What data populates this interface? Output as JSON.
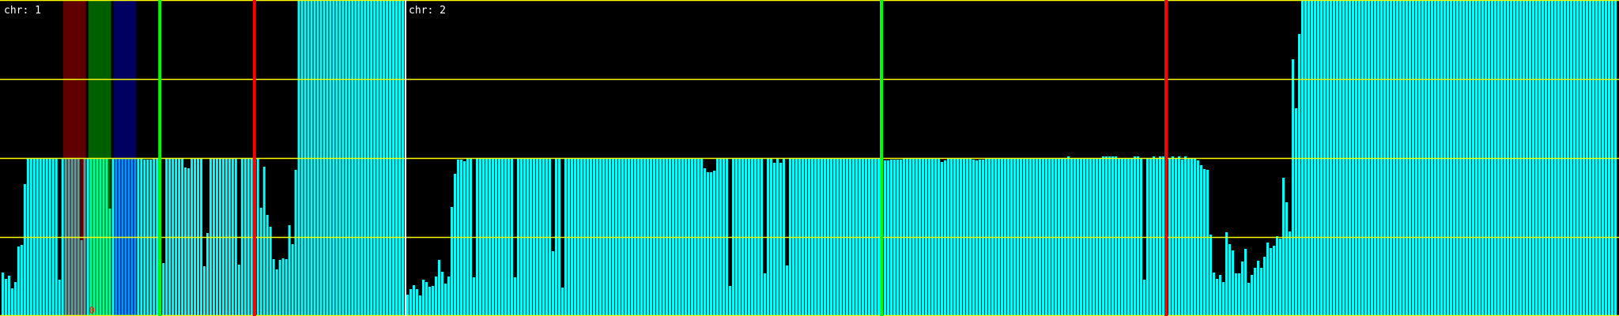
{
  "chart_data": {
    "type": "bar",
    "ylim": [
      0,
      4
    ],
    "gridlines": [
      0,
      1,
      2,
      3,
      4
    ],
    "grid": true,
    "colors": {
      "background": "#000000",
      "bar": "#00ffff",
      "grid": "#ffff00",
      "separator": "#ffffff",
      "green-line": "#00ff00",
      "red-line": "#ff0000",
      "band_bg": {
        "red": "#600000",
        "green": "#005f00",
        "blue": "#000060"
      },
      "band_bar": {
        "red": "#609c9c",
        "green": "#00ff98",
        "blue": "#0098ff"
      },
      "annotation": "#ff2020",
      "label": "#ffffff"
    },
    "panels": [
      {
        "label": "chr: 1",
        "values": [
          0.55,
          0.47,
          0.51,
          0.35,
          0.43,
          0.88,
          0.9,
          1.67,
          2,
          2,
          2,
          2,
          2,
          2,
          2,
          2,
          2,
          2,
          0.46,
          2,
          2,
          2,
          2,
          2,
          2,
          0.96,
          2,
          2,
          2,
          2,
          2,
          2,
          2,
          2,
          1.36,
          2,
          2,
          2,
          2,
          2,
          2,
          2,
          2,
          2,
          2,
          1.98,
          1.98,
          1.98,
          2,
          2,
          2,
          0.67,
          2,
          2,
          2,
          2,
          2,
          2,
          1.88,
          1.87,
          2,
          2,
          2,
          2,
          0.63,
          1.05,
          2,
          2,
          2,
          2,
          2,
          2,
          2,
          2,
          2,
          0.65,
          2,
          2,
          2,
          2,
          2,
          2,
          1.37,
          1.89,
          1.28,
          1.13,
          0.72,
          0.59,
          0.71,
          0.73,
          0.72,
          1.15,
          0.91,
          1.85,
          4,
          4,
          4,
          4,
          4,
          4,
          4,
          4,
          4,
          4,
          4,
          4,
          4,
          4,
          4,
          4,
          4,
          4,
          4,
          4,
          4,
          4,
          4,
          4,
          4,
          4,
          4,
          4,
          4,
          4,
          4,
          4,
          4,
          4
        ],
        "markers": [
          {
            "kind": "green-line",
            "index": 50
          },
          {
            "kind": "red-line",
            "index": 80
          }
        ],
        "bands": [
          {
            "color": "red",
            "from": 20,
            "to": 26
          },
          {
            "color": "green",
            "from": 28,
            "to": 34
          },
          {
            "color": "blue",
            "from": 36,
            "to": 42
          }
        ],
        "annotations": [
          {
            "text": "0",
            "index": 28
          }
        ]
      },
      {
        "label": "chr: 2",
        "values": [
          0.27,
          0.34,
          0.39,
          0.34,
          0.26,
          0.46,
          0.43,
          0.37,
          0.38,
          0.5,
          0.71,
          0.56,
          0.41,
          0.5,
          1.38,
          1.8,
          1.98,
          1.98,
          1.96,
          2,
          2,
          0.49,
          2,
          2,
          2,
          2,
          2,
          2,
          2,
          2,
          2,
          2,
          2,
          2,
          0.49,
          2,
          2,
          2,
          2,
          2,
          2,
          2,
          2,
          2,
          2,
          2,
          0.82,
          2,
          2,
          0.36,
          2,
          2,
          2,
          2,
          2,
          2,
          2,
          2,
          2,
          2,
          2,
          2,
          2,
          2,
          2,
          2,
          2,
          2,
          2,
          2,
          2,
          2,
          2,
          2,
          2,
          2,
          2,
          2,
          2,
          2,
          2,
          2,
          2,
          2,
          2,
          2,
          2,
          2,
          2,
          2,
          2,
          2,
          2,
          2,
          1.87,
          1.82,
          1.82,
          1.84,
          2,
          2,
          2,
          2,
          0.38,
          2,
          2,
          2,
          2,
          2,
          2,
          2,
          2,
          2,
          2,
          0.54,
          2,
          2,
          1.94,
          2,
          1.94,
          2,
          0.64,
          2,
          2,
          2,
          2,
          2,
          2,
          2,
          2,
          2,
          2,
          2,
          2,
          2,
          2,
          2,
          2,
          2,
          2,
          2,
          2,
          2,
          2,
          2,
          2,
          2,
          2,
          2,
          2,
          2,
          2,
          1.97,
          1.97,
          1.98,
          1.98,
          1.98,
          1.98,
          2,
          2,
          2,
          2,
          2,
          2,
          2,
          2,
          2,
          2,
          2,
          2,
          1.95,
          1.97,
          2,
          2,
          2,
          2,
          2,
          2,
          2,
          2,
          1.98,
          1.97,
          1.98,
          1.98,
          2,
          2,
          2,
          2,
          2,
          2,
          2,
          2,
          2,
          2,
          2,
          2,
          2,
          2,
          2,
          2,
          2,
          2,
          2,
          2,
          2,
          2,
          2,
          2,
          2,
          2,
          2.02,
          2,
          2,
          2,
          2,
          2,
          2,
          2,
          2,
          2,
          2,
          2.02,
          2.02,
          2.02,
          2.02,
          2.02,
          2,
          2,
          2,
          2,
          2,
          2.02,
          2.02,
          2,
          0.46,
          2,
          2,
          2.02,
          2,
          2.02,
          2.02,
          2,
          2,
          2.02,
          2,
          2.02,
          1.98,
          2.02,
          2,
          2,
          2,
          1.97,
          1.91,
          1.86,
          1.85,
          1.03,
          0.55,
          0.47,
          0.52,
          0.43,
          1.06,
          0.91,
          0.83,
          0.54,
          0.54,
          0.69,
          0.85,
          0.42,
          0.52,
          0.61,
          0.7,
          0.61,
          0.75,
          0.93,
          0.86,
          0.89,
          1.01,
          0.98,
          1.75,
          1.44,
          1.07,
          3.25,
          2.63,
          3.57,
          4,
          4,
          4,
          4,
          4,
          4,
          4,
          4,
          4,
          4,
          4,
          4,
          4,
          4,
          4,
          4,
          4,
          4,
          4,
          4,
          4,
          4,
          4,
          4,
          4,
          4,
          4,
          4,
          4,
          4,
          4,
          4,
          4,
          4,
          4,
          4,
          4,
          4,
          4,
          4,
          4,
          4,
          4,
          4,
          4,
          4,
          4,
          4,
          4,
          4,
          4,
          4,
          4,
          4,
          4,
          4,
          4,
          4,
          4,
          4,
          4,
          4,
          4,
          4,
          4,
          4,
          4,
          4,
          4,
          4,
          4,
          4,
          4,
          4,
          4,
          4,
          4,
          4,
          4,
          4,
          4,
          4,
          4,
          4,
          4,
          4,
          4,
          4,
          4,
          4,
          4,
          4,
          4,
          4,
          4,
          4,
          4,
          4,
          4,
          4
        ],
        "markers": [
          {
            "kind": "green-line",
            "index": 150
          },
          {
            "kind": "red-line",
            "index": 240
          }
        ],
        "bands": [],
        "annotations": []
      }
    ]
  }
}
